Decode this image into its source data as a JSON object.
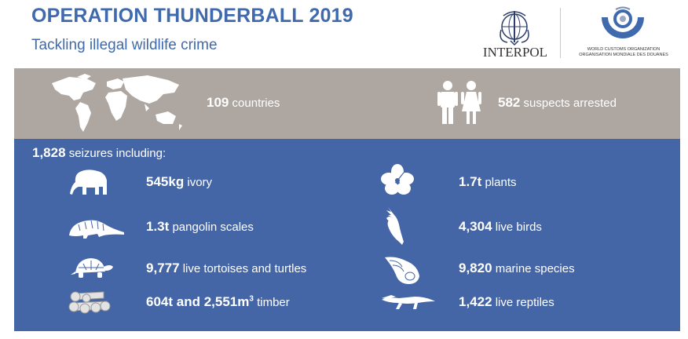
{
  "header": {
    "title": "OPERATION THUNDERBALL 2019",
    "subtitle": "Tackling illegal wildlife crime"
  },
  "logos": {
    "interpol": "INTERPOL",
    "wco_line1": "WORLD CUSTOMS ORGANIZATION",
    "wco_line2": "ORGANISATION MONDIALE DES DOUANES"
  },
  "colors": {
    "title_blue": "#3f6aad",
    "band_gray": "#aea7a1",
    "panel_blue": "#4566a6"
  },
  "summary": {
    "countries": {
      "value": "109",
      "label": "countries",
      "icon": "world-map-icon"
    },
    "suspects": {
      "value": "582",
      "label": "suspects arrested",
      "icon": "people-icon"
    }
  },
  "seizures": {
    "total": "1,828",
    "label": "seizures including:",
    "items": [
      {
        "value": "545kg",
        "label": "ivory",
        "icon": "elephant-icon"
      },
      {
        "value": "1.7t",
        "label": "plants",
        "icon": "flower-icon"
      },
      {
        "value": "1.3t",
        "label": "pangolin scales",
        "icon": "pangolin-icon"
      },
      {
        "value": "4,304",
        "label": "live birds",
        "icon": "cockatoo-icon"
      },
      {
        "value": "9,777",
        "label": "live tortoises and turtles",
        "icon": "tortoise-icon"
      },
      {
        "value": "9,820",
        "label": "marine species",
        "icon": "shell-icon"
      },
      {
        "value": "604t and 2,551m",
        "sup": "3",
        "label": "timber",
        "icon": "logs-icon"
      },
      {
        "value": "1,422",
        "label": "live reptiles",
        "icon": "crocodile-icon"
      }
    ]
  }
}
